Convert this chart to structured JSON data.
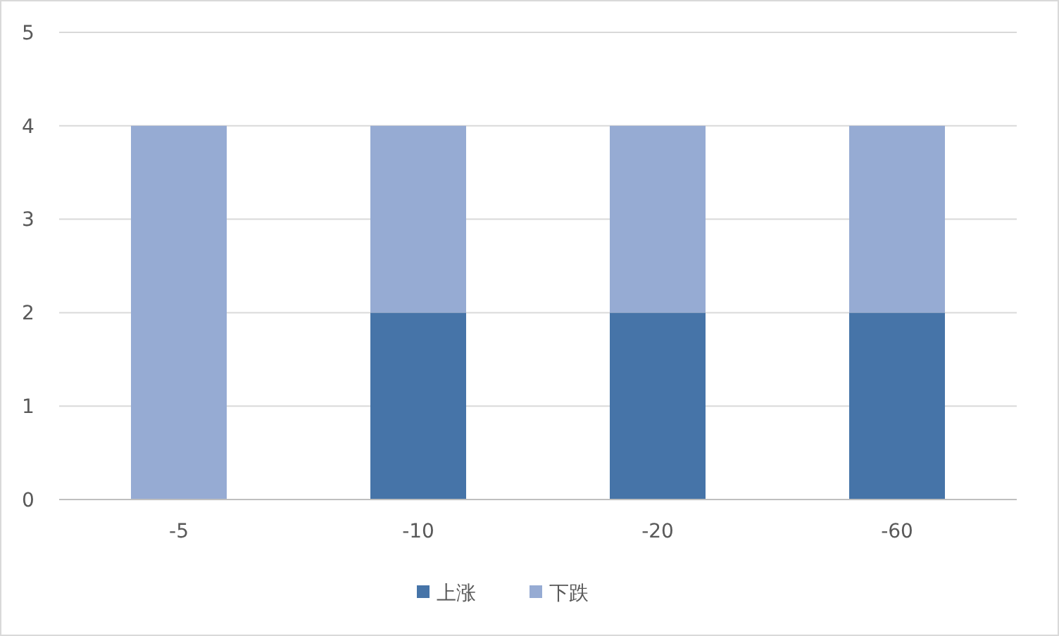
{
  "chart_data": {
    "type": "bar",
    "stacked": true,
    "categories": [
      "-5",
      "-10",
      "-20",
      "-60"
    ],
    "series": [
      {
        "name": "上涨",
        "color": "#4674a8",
        "values": [
          0,
          2,
          2,
          2
        ]
      },
      {
        "name": "下跌",
        "color": "#96abd3",
        "values": [
          4,
          2,
          2,
          2
        ]
      }
    ],
    "ylim": [
      0,
      5
    ],
    "yticks": [
      0,
      1,
      2,
      3,
      4,
      5
    ],
    "grid": "y",
    "legend": "bottom"
  }
}
